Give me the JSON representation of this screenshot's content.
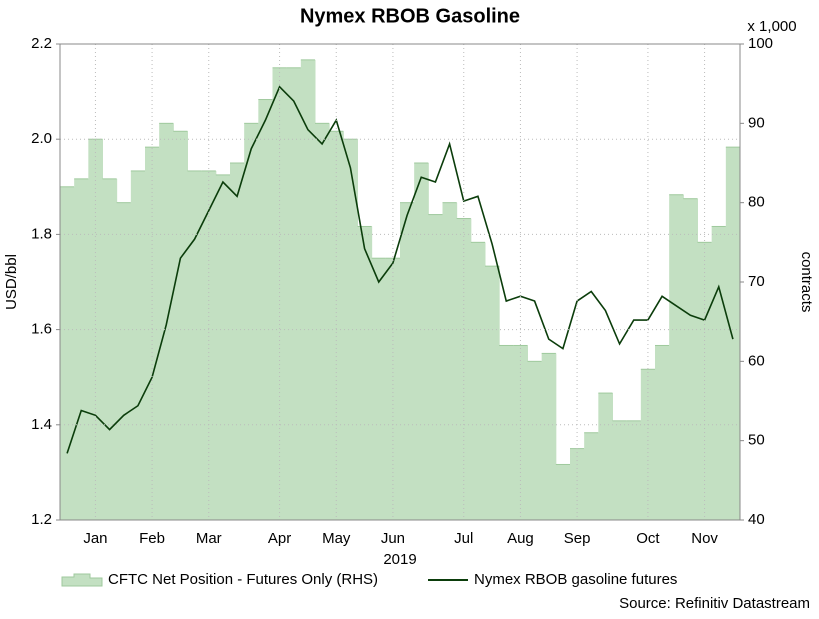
{
  "chart_data": {
    "type": "combo",
    "title": "Nymex RBOB Gasoline",
    "x_label": "2019",
    "y_label": "USD/bbl",
    "y2_label": "contracts",
    "y2_unit": "x 1,000",
    "source": "Source: Refinitiv Datastream",
    "x": [
      null,
      null,
      "Jan",
      null,
      null,
      null,
      "Feb",
      null,
      null,
      null,
      "Mar",
      null,
      null,
      null,
      null,
      "Apr",
      null,
      null,
      null,
      "May",
      null,
      null,
      null,
      "Jun",
      null,
      null,
      null,
      null,
      "Jul",
      null,
      null,
      null,
      "Aug",
      null,
      null,
      null,
      "Sep",
      null,
      null,
      null,
      null,
      "Oct",
      null,
      null,
      null,
      "Nov",
      null,
      null
    ],
    "ylim": [
      1.2,
      2.2
    ],
    "yticks": [
      1.2,
      1.4,
      1.6,
      1.8,
      {
        "value": 2,
        "label": "2.0"
      },
      2.2
    ],
    "y2lim": [
      40,
      100
    ],
    "y2ticks": [
      40,
      50,
      60,
      70,
      80,
      90,
      100
    ],
    "grid": true,
    "series": [
      {
        "name": "CFTC Net Position - Futures Only (RHS)",
        "type": "area",
        "axis": "y2",
        "color": "#c3e0c2",
        "edge": "#9fc99d",
        "values": [
          82,
          83,
          88,
          83,
          80,
          84,
          87,
          90,
          89,
          84,
          84,
          83.5,
          85,
          90,
          93,
          97,
          97,
          98,
          90,
          89,
          88,
          77,
          73,
          73,
          80,
          85,
          78.5,
          80,
          78,
          75,
          72,
          62,
          62,
          60,
          61,
          47,
          49,
          51,
          56,
          52.5,
          52.5,
          59,
          62,
          81,
          80.5,
          75,
          77,
          87
        ]
      },
      {
        "name": "Nymex RBOB gasoline futures",
        "type": "line",
        "color": "#0b3d0b",
        "values": [
          1.34,
          1.43,
          1.42,
          1.39,
          1.42,
          1.44,
          1.5,
          1.61,
          1.75,
          1.79,
          1.85,
          1.91,
          1.88,
          1.98,
          2.04,
          2.11,
          2.08,
          2.02,
          1.99,
          2.04,
          1.94,
          1.77,
          1.7,
          1.74,
          1.84,
          1.92,
          1.91,
          1.99,
          1.87,
          1.88,
          1.78,
          1.66,
          1.67,
          1.66,
          1.58,
          1.56,
          1.66,
          1.68,
          1.64,
          1.57,
          1.62,
          1.62,
          1.67,
          1.65,
          1.63,
          1.62,
          1.69,
          1.58
        ]
      }
    ]
  }
}
